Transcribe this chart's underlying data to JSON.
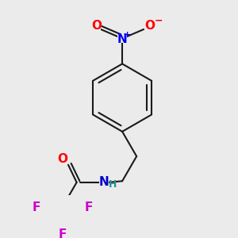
{
  "background_color": "#ebebeb",
  "bond_color": "#1a1a1a",
  "bond_width": 1.5,
  "atom_colors": {
    "O": "#ff0000",
    "N_nitro": "#0000ee",
    "N_amine": "#0000cc",
    "F": "#cc00cc",
    "H": "#2a8f8f",
    "C": "#1a1a1a"
  },
  "font_size_atoms": 11,
  "font_size_H": 9,
  "font_size_charge": 8
}
